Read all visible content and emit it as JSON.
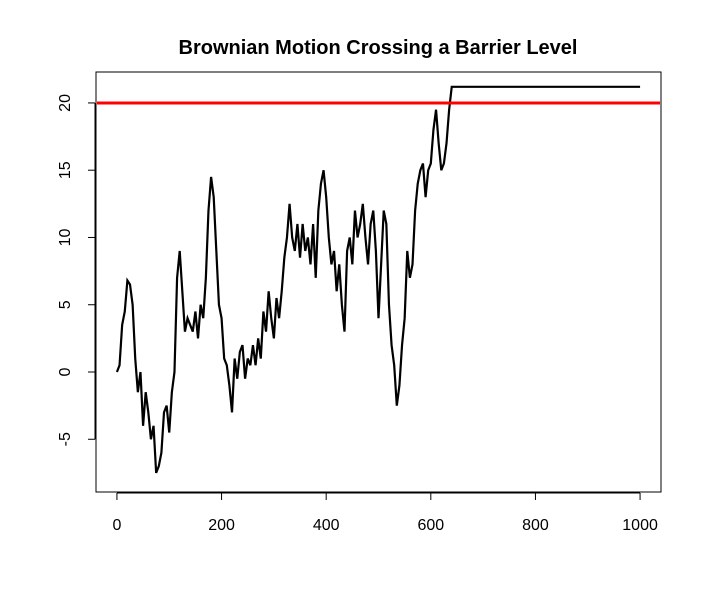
{
  "chart_data": {
    "type": "line",
    "title": "Brownian Motion Crossing a Barrier Level",
    "x": [
      0,
      5,
      10,
      15,
      20,
      25,
      30,
      35,
      40,
      45,
      50,
      55,
      60,
      65,
      70,
      75,
      80,
      85,
      90,
      95,
      100,
      105,
      110,
      115,
      120,
      125,
      130,
      135,
      140,
      145,
      150,
      155,
      160,
      165,
      170,
      175,
      180,
      185,
      190,
      195,
      200,
      205,
      210,
      215,
      220,
      225,
      230,
      235,
      240,
      245,
      250,
      255,
      260,
      265,
      270,
      275,
      280,
      285,
      290,
      295,
      300,
      305,
      310,
      315,
      320,
      325,
      330,
      335,
      340,
      345,
      350,
      355,
      360,
      365,
      370,
      375,
      380,
      385,
      390,
      395,
      400,
      405,
      410,
      415,
      420,
      425,
      430,
      435,
      440,
      445,
      450,
      455,
      460,
      465,
      470,
      475,
      480,
      485,
      490,
      495,
      500,
      505,
      510,
      515,
      520,
      525,
      530,
      535,
      540,
      545,
      550,
      555,
      560,
      565,
      570,
      575,
      580,
      585,
      590,
      595,
      600,
      605,
      610,
      615,
      620,
      625,
      630,
      635,
      640,
      1000
    ],
    "series": [
      {
        "color": "#000000",
        "values": [
          0,
          0.5,
          3.5,
          4.5,
          6.8,
          6.5,
          5,
          1,
          -1.5,
          0,
          -4,
          -1.5,
          -3,
          -5,
          -4,
          -7.5,
          -7,
          -6,
          -3,
          -2.5,
          -4.5,
          -1.5,
          0,
          7,
          9,
          6,
          3,
          4,
          3.5,
          3,
          4.5,
          2.5,
          5,
          4,
          7,
          12,
          14.5,
          13,
          9,
          5,
          4,
          1,
          0.5,
          -1,
          -3,
          1,
          -0.5,
          1.5,
          2,
          -0.5,
          1,
          0.5,
          2,
          0.5,
          2.5,
          1,
          4.5,
          3,
          6,
          4,
          2.5,
          5.5,
          4,
          6,
          8.5,
          10,
          12.5,
          10,
          9,
          11,
          8.5,
          11,
          9,
          10,
          8,
          11,
          7,
          12,
          14,
          15,
          13,
          10,
          8,
          9,
          6,
          8,
          5,
          3,
          9,
          10,
          8,
          12,
          10,
          11,
          12.5,
          10,
          8,
          11,
          12,
          9,
          4,
          8,
          12,
          11,
          5,
          2,
          0.5,
          -2.5,
          -1,
          2,
          4,
          9,
          7,
          8,
          12,
          14,
          15,
          15.5,
          13,
          15,
          15.5,
          18,
          19.5,
          17,
          15,
          15.5,
          17,
          19.5,
          21.2,
          21.2
        ]
      }
    ],
    "barrier": 20,
    "barrier_color": "#ff0000",
    "xlim": [
      -40,
      1040
    ],
    "ylim": [
      -8.92,
      22.3
    ],
    "xticks": [
      0,
      200,
      400,
      600,
      800,
      1000
    ],
    "yticks": [
      -5,
      0,
      5,
      10,
      15,
      20
    ]
  }
}
